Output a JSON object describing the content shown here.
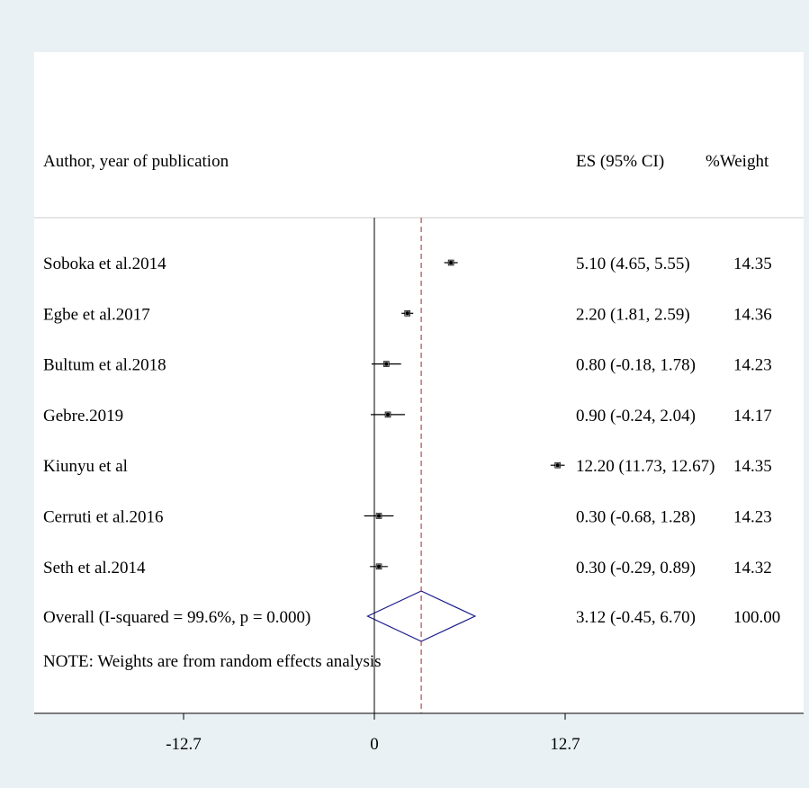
{
  "chart_data": {
    "type": "forest",
    "headers": {
      "study": "Author, year of publication",
      "es": "ES (95% CI)",
      "weight": "%Weight"
    },
    "studies": [
      {
        "label": "Soboka et al.2014",
        "es": 5.1,
        "lo": 4.65,
        "hi": 5.55,
        "es_text": "5.10 (4.65, 5.55)",
        "weight_text": "14.35"
      },
      {
        "label": "Egbe et al.2017",
        "es": 2.2,
        "lo": 1.81,
        "hi": 2.59,
        "es_text": "2.20 (1.81, 2.59)",
        "weight_text": "14.36"
      },
      {
        "label": "Bultum et al.2018",
        "es": 0.8,
        "lo": -0.18,
        "hi": 1.78,
        "es_text": "0.80 (-0.18, 1.78)",
        "weight_text": "14.23"
      },
      {
        "label": "Gebre.2019",
        "es": 0.9,
        "lo": -0.24,
        "hi": 2.04,
        "es_text": "0.90 (-0.24, 2.04)",
        "weight_text": "14.17"
      },
      {
        "label": "Kiunyu et al",
        "es": 12.2,
        "lo": 11.73,
        "hi": 12.67,
        "es_text": "12.20 (11.73, 12.67)",
        "weight_text": "14.35"
      },
      {
        "label": "Cerruti et al.2016",
        "es": 0.3,
        "lo": -0.68,
        "hi": 1.28,
        "es_text": "0.30 (-0.68, 1.28)",
        "weight_text": "14.23"
      },
      {
        "label": "Seth et al.2014",
        "es": 0.3,
        "lo": -0.29,
        "hi": 0.89,
        "es_text": "0.30 (-0.29, 0.89)",
        "weight_text": "14.32"
      }
    ],
    "overall": {
      "label": "Overall (I-squared = 99.6%, p = 0.000)",
      "es": 3.12,
      "lo": -0.45,
      "hi": 6.7,
      "es_text": "3.12 (-0.45, 6.70)",
      "weight_text": "100.00"
    },
    "note": "NOTE: Weights are from random effects analysis",
    "xticks": [
      -12.7,
      0,
      12.7
    ],
    "xtick_labels": [
      "-12.7",
      "0",
      "12.7"
    ],
    "null_line": 0,
    "xlim": [
      -22.4,
      29.0
    ],
    "colors": {
      "marker": "#000000",
      "diamond": "#1a1a8c",
      "overall_line": "#a0282a",
      "background": "#eaf1f4"
    }
  }
}
